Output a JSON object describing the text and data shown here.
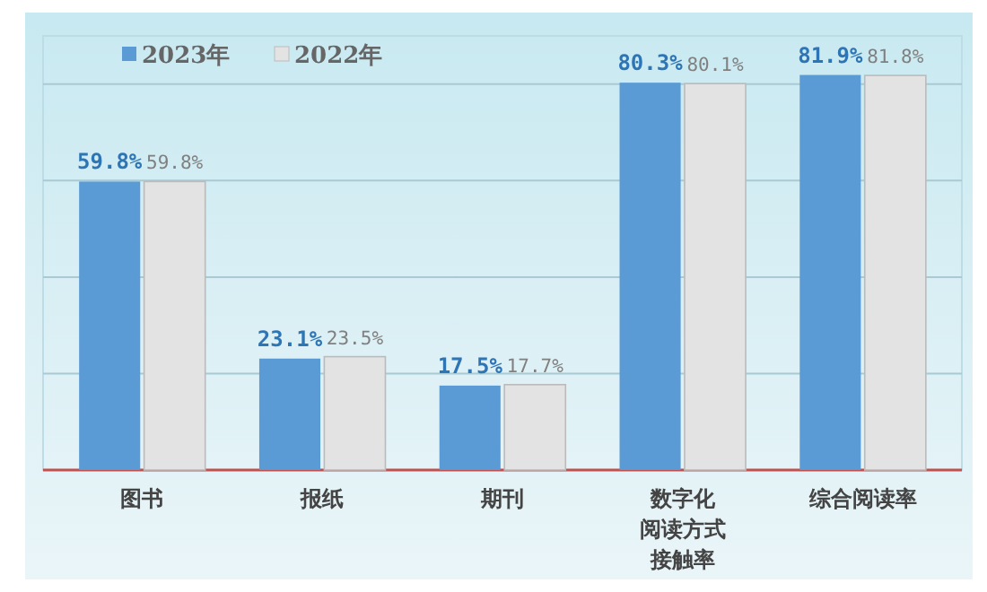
{
  "chart_data": {
    "type": "bar",
    "categories": [
      "图书",
      "报纸",
      "期刊",
      "数字化阅读方式接触率",
      "综合阅读率"
    ],
    "series": [
      {
        "name": "2023年",
        "color": "#5b9bd5",
        "values": [
          59.8,
          23.1,
          17.5,
          80.3,
          81.9
        ],
        "value_labels": [
          "59.8%",
          "23.1%",
          "17.5%",
          "80.3%",
          "81.9%"
        ]
      },
      {
        "name": "2022年",
        "color": "#e3e3e3",
        "values": [
          59.8,
          23.5,
          17.7,
          80.1,
          81.8
        ],
        "value_labels": [
          "59.8%",
          "23.5%",
          "17.7%",
          "80.1%",
          "81.8%"
        ]
      }
    ],
    "ylim": [
      0,
      90
    ],
    "yticks": [
      {
        "value": 0,
        "label": null
      },
      {
        "value": 20,
        "label": null
      },
      {
        "value": 40,
        "label": null
      },
      {
        "value": 60,
        "label": null
      },
      {
        "value": 80,
        "label": null
      }
    ],
    "grid": "y",
    "legend": "top left"
  }
}
